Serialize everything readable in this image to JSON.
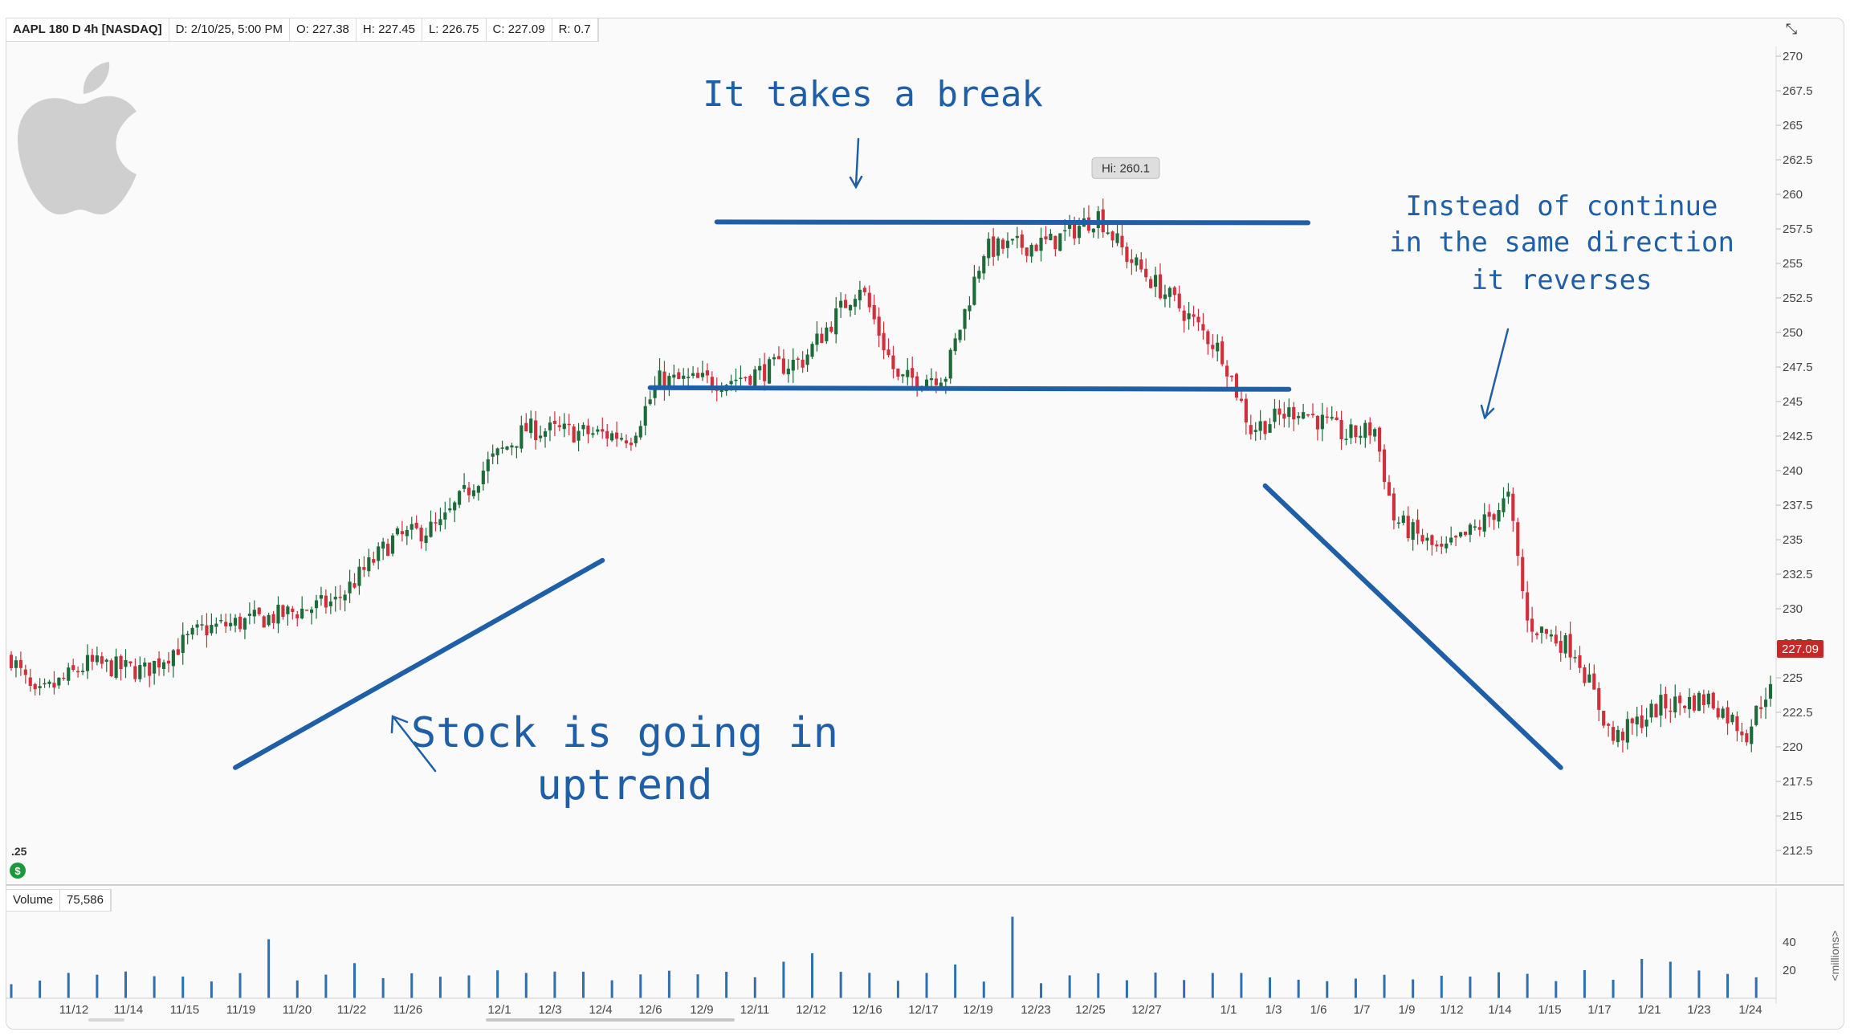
{
  "header": {
    "symbol": "AAPL 180 D 4h [NASDAQ]",
    "date": "D: 2/10/25, 5:00 PM",
    "open": "O: 227.38",
    "high": "H: 227.45",
    "low": "L: 226.75",
    "close": "C: 227.09",
    "range": "R: 0.7"
  },
  "volume_header": {
    "label": "Volume",
    "value": "75,586"
  },
  "annotations": {
    "top": "It takes a break",
    "right_line1": "Instead of continue",
    "right_line2": "in the same direction",
    "right_line3": "it reverses",
    "left_line1": "Stock is going in",
    "left_line2": "uptrend"
  },
  "hi_label": "Hi: 260.1",
  "last_price_label": "227.09",
  "small_label": ".25",
  "volume_unit": "<millions>",
  "colors": {
    "up": "#1e6b3a",
    "down": "#d0303b",
    "volume": "#2f6fb0",
    "annotation": "#1f5fa8",
    "price_tag": "#c62828"
  },
  "icons": {
    "expand": "collapse-arrows-icon",
    "logo": "apple-logo-icon"
  },
  "chart_data": {
    "type": "candlestick",
    "price_axis": {
      "ylim": [
        210,
        271
      ],
      "ticks": [
        "270",
        "267.5",
        "265",
        "262.5",
        "260",
        "257.5",
        "255",
        "252.5",
        "250",
        "247.5",
        "245",
        "242.5",
        "240",
        "237.5",
        "235",
        "232.5",
        "230",
        "227.5",
        "225",
        "222.5",
        "220",
        "217.5",
        "215",
        "212.5"
      ]
    },
    "volume_axis": {
      "unit": "millions",
      "ticks": [
        "40",
        "20"
      ]
    },
    "x_labels": [
      "11/12",
      "11/14",
      "11/15",
      "11/19",
      "11/20",
      "11/22",
      "11/26",
      "12/1",
      "12/3",
      "12/4",
      "12/6",
      "12/9",
      "12/11",
      "12/12",
      "12/16",
      "12/17",
      "12/19",
      "12/23",
      "12/25",
      "12/27",
      "1/1",
      "1/3",
      "1/6",
      "1/7",
      "1/9",
      "1/12",
      "1/14",
      "1/15",
      "1/17",
      "1/21",
      "1/23",
      "1/24"
    ],
    "close_path": [
      {
        "i": 0,
        "p": 226.5
      },
      {
        "i": 5,
        "p": 223.5
      },
      {
        "i": 16,
        "p": 226.0
      },
      {
        "i": 28,
        "p": 225.5
      },
      {
        "i": 40,
        "p": 228.5
      },
      {
        "i": 56,
        "p": 229.5
      },
      {
        "i": 68,
        "p": 230.5
      },
      {
        "i": 80,
        "p": 235.0
      },
      {
        "i": 90,
        "p": 236.0
      },
      {
        "i": 100,
        "p": 240.5
      },
      {
        "i": 108,
        "p": 243.0
      },
      {
        "i": 130,
        "p": 242.5
      },
      {
        "i": 136,
        "p": 246.5
      },
      {
        "i": 150,
        "p": 246.5
      },
      {
        "i": 166,
        "p": 248.0
      },
      {
        "i": 178,
        "p": 253.5
      },
      {
        "i": 186,
        "p": 246.5
      },
      {
        "i": 196,
        "p": 247.0
      },
      {
        "i": 204,
        "p": 256.0
      },
      {
        "i": 218,
        "p": 256.5
      },
      {
        "i": 228,
        "p": 258.5
      },
      {
        "i": 234,
        "p": 255.5
      },
      {
        "i": 246,
        "p": 251.5
      },
      {
        "i": 254,
        "p": 248.5
      },
      {
        "i": 260,
        "p": 243.0
      },
      {
        "i": 270,
        "p": 244.5
      },
      {
        "i": 280,
        "p": 242.5
      },
      {
        "i": 286,
        "p": 243.0
      },
      {
        "i": 290,
        "p": 236.5
      },
      {
        "i": 300,
        "p": 234.0
      },
      {
        "i": 308,
        "p": 236.0
      },
      {
        "i": 314,
        "p": 238.0
      },
      {
        "i": 318,
        "p": 229.0
      },
      {
        "i": 328,
        "p": 227.0
      },
      {
        "i": 336,
        "p": 220.5
      },
      {
        "i": 346,
        "p": 223.0
      },
      {
        "i": 356,
        "p": 223.5
      },
      {
        "i": 364,
        "p": 221.0
      },
      {
        "i": 368,
        "p": 224.0
      }
    ],
    "high_value": 260.1,
    "last_close": 227.09,
    "horizontal_lines": [
      {
        "from_i": 134,
        "to_i": 268,
        "price": 246.0
      },
      {
        "from_i": 148,
        "to_i": 272,
        "price": 258.0
      }
    ],
    "trend_lines": [
      {
        "from_i": 47,
        "from_price": 218.5,
        "to_i": 124,
        "to_price": 233.5
      },
      {
        "from_i": 263,
        "from_price": 238.9,
        "to_i": 325,
        "to_price": 218.5
      }
    ]
  }
}
